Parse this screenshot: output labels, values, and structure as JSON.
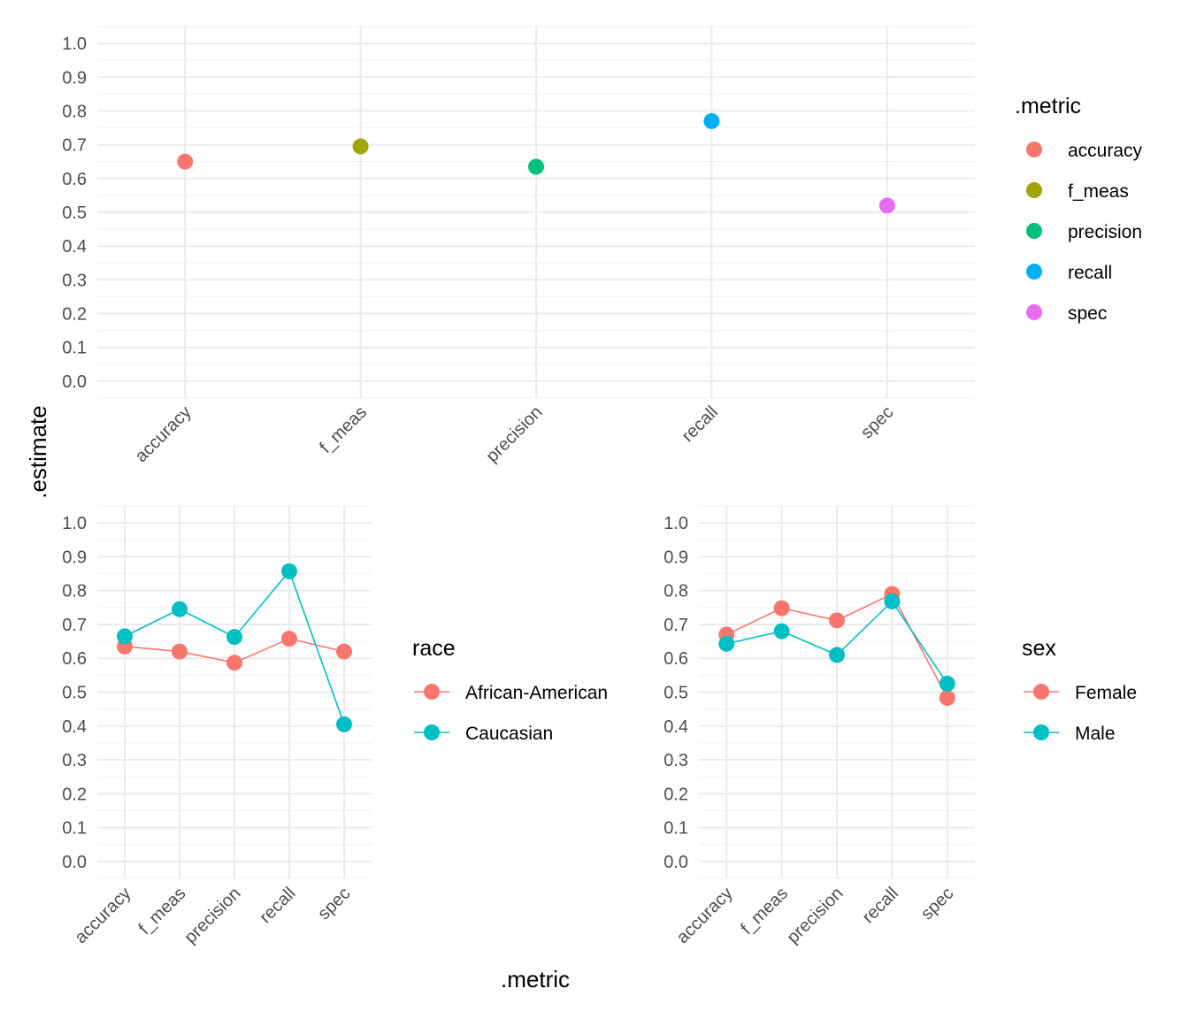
{
  "axis_titles": {
    "y": ".estimate",
    "x": ".metric"
  },
  "colors": {
    "accuracy": "#F8766D",
    "f_meas": "#A3A500",
    "precision": "#00BF7D",
    "recall": "#00B0F6",
    "spec": "#E76BF3",
    "group_1": "#F8766D",
    "group_2": "#00BFC4"
  },
  "chart_data": [
    {
      "type": "scatter",
      "categories": [
        "accuracy",
        "f_meas",
        "precision",
        "recall",
        "spec"
      ],
      "values": [
        0.65,
        0.695,
        0.635,
        0.77,
        0.52
      ],
      "ylim": [
        -0.05,
        1.05
      ],
      "yticks": [
        "0.0",
        "0.1",
        "0.2",
        "0.3",
        "0.4",
        "0.5",
        "0.6",
        "0.7",
        "0.8",
        "0.9",
        "1.0"
      ],
      "legend_title": ".metric",
      "legend_position": "right",
      "grid": true
    },
    {
      "type": "line",
      "categories": [
        "accuracy",
        "f_meas",
        "precision",
        "recall",
        "spec"
      ],
      "series": [
        {
          "name": "African-American",
          "values": [
            0.635,
            0.62,
            0.587,
            0.658,
            0.62
          ]
        },
        {
          "name": "Caucasian",
          "values": [
            0.665,
            0.745,
            0.663,
            0.857,
            0.405
          ]
        }
      ],
      "ylim": [
        -0.05,
        1.05
      ],
      "yticks": [
        "0.0",
        "0.1",
        "0.2",
        "0.3",
        "0.4",
        "0.5",
        "0.6",
        "0.7",
        "0.8",
        "0.9",
        "1.0"
      ],
      "legend_title": "race",
      "legend_position": "right",
      "grid": true
    },
    {
      "type": "line",
      "categories": [
        "accuracy",
        "f_meas",
        "precision",
        "recall",
        "spec"
      ],
      "series": [
        {
          "name": "Female",
          "values": [
            0.67,
            0.748,
            0.712,
            0.79,
            0.483
          ]
        },
        {
          "name": "Male",
          "values": [
            0.643,
            0.68,
            0.61,
            0.768,
            0.525
          ]
        }
      ],
      "ylim": [
        -0.05,
        1.05
      ],
      "yticks": [
        "0.0",
        "0.1",
        "0.2",
        "0.3",
        "0.4",
        "0.5",
        "0.6",
        "0.7",
        "0.8",
        "0.9",
        "1.0"
      ],
      "legend_title": "sex",
      "legend_position": "right",
      "grid": true
    }
  ]
}
